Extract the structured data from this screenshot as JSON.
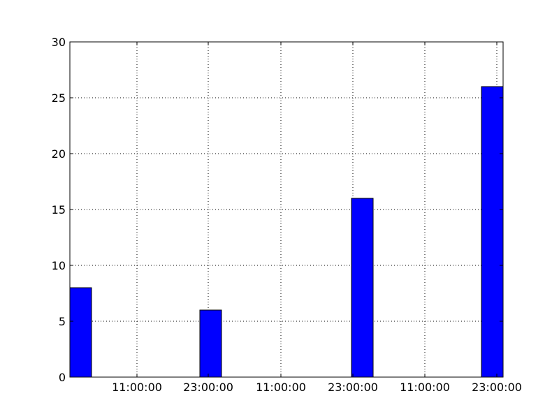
{
  "chart_data": {
    "type": "bar",
    "title": "",
    "xlabel": "",
    "ylabel": "",
    "ylim": [
      0,
      30
    ],
    "yticks": [
      "0",
      "5",
      "10",
      "15",
      "20",
      "25",
      "30"
    ],
    "x_tick_labels": [
      "11:00:00",
      "23:00:00",
      "11:00:00",
      "23:00:00",
      "11:00:00",
      "23:00:00"
    ],
    "grid": true,
    "grid_style": "dotted",
    "bar_color": "#0000ff",
    "bar_edge_color": "#000000",
    "bars": [
      {
        "x_label": "",
        "value": 8
      },
      {
        "x_label": "",
        "value": 6
      },
      {
        "x_label": "",
        "value": 16
      },
      {
        "x_label": "",
        "value": 26
      }
    ]
  }
}
